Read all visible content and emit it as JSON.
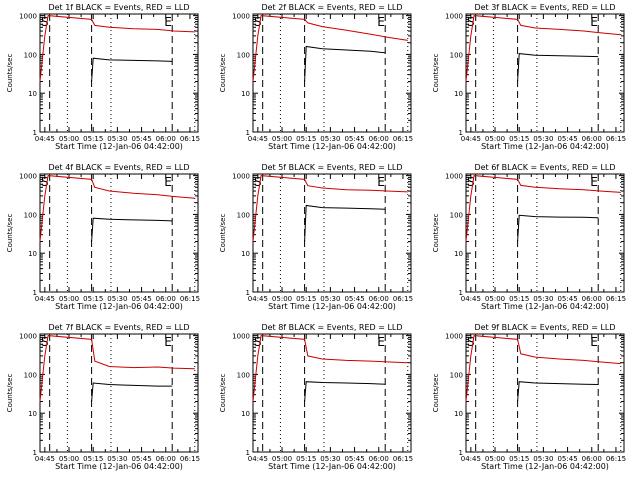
{
  "figure": {
    "panels": [
      {
        "title": "Det 1f BLACK = Events, RED = LLD"
      },
      {
        "title": "Det 2f BLACK = Events, RED = LLD"
      },
      {
        "title": "Det 3f BLACK = Events, RED = LLD"
      },
      {
        "title": "Det 4f BLACK = Events, RED = LLD"
      },
      {
        "title": "Det 5f BLACK = Events, RED = LLD"
      },
      {
        "title": "Det 6f BLACK = Events, RED = LLD"
      },
      {
        "title": "Det 7f BLACK = Events, RED = LLD"
      },
      {
        "title": "Det 8f BLACK = Events, RED = LLD"
      },
      {
        "title": "Det 9f BLACK = Events, RED = LLD"
      }
    ],
    "ylabel": "Counts/sec",
    "xlabel": "Start Time (12-Jan-06 04:42:00)",
    "x_ticks": [
      "04:45",
      "05:00",
      "05:15",
      "05:30",
      "05:45",
      "06:00",
      "06:15"
    ],
    "y_ticks": [
      "1",
      "10",
      "100",
      "1000"
    ],
    "marks": {
      "start": "S",
      "end": "E"
    },
    "colors": {
      "events": "#000000",
      "lld": "#cc0000",
      "axes": "#000000"
    }
  },
  "chart_data": {
    "type": "line",
    "layout": "3x3 grid of identical line charts",
    "x_range": [
      "04:42",
      "06:20"
    ],
    "y_scale": "log",
    "ylim": [
      1,
      1100
    ],
    "vertical_markers": {
      "dashed": [
        "04:48",
        "05:14",
        "06:04"
      ],
      "dotted": [
        "04:59",
        "05:26",
        "06:18"
      ]
    },
    "panels": [
      {
        "title": "Det 1f BLACK = Events, RED = LLD",
        "series": [
          {
            "name": "LLD",
            "x": [
              "04:42",
              "04:45",
              "04:47",
              "05:14",
              "05:16",
              "05:25",
              "05:40",
              "05:55",
              "06:05",
              "06:18"
            ],
            "y": [
              20,
              300,
              1000,
              800,
              560,
              500,
              460,
              440,
              400,
              380
            ]
          },
          {
            "name": "Events",
            "x": [
              "05:14",
              "05:15",
              "05:25",
              "05:40",
              "05:55",
              "06:04"
            ],
            "y": [
              20,
              80,
              72,
              70,
              68,
              66
            ]
          }
        ]
      },
      {
        "title": "Det 2f BLACK = Events, RED = LLD",
        "series": [
          {
            "name": "LLD",
            "x": [
              "04:42",
              "04:45",
              "04:47",
              "05:14",
              "05:16",
              "05:25",
              "05:40",
              "05:55",
              "06:05",
              "06:18"
            ],
            "y": [
              20,
              300,
              1000,
              800,
              650,
              520,
              420,
              330,
              280,
              230
            ]
          },
          {
            "name": "Events",
            "x": [
              "05:14",
              "05:15",
              "05:25",
              "05:40",
              "05:55",
              "06:04"
            ],
            "y": [
              20,
              160,
              140,
              130,
              120,
              110
            ]
          }
        ]
      },
      {
        "title": "Det 3f BLACK = Events, RED = LLD",
        "series": [
          {
            "name": "LLD",
            "x": [
              "04:42",
              "04:45",
              "04:47",
              "05:14",
              "05:16",
              "05:25",
              "05:40",
              "05:55",
              "06:05",
              "06:18"
            ],
            "y": [
              20,
              300,
              1000,
              800,
              560,
              480,
              440,
              400,
              360,
              320
            ]
          },
          {
            "name": "Events",
            "x": [
              "05:14",
              "05:15",
              "05:25",
              "05:40",
              "05:55",
              "06:04"
            ],
            "y": [
              20,
              105,
              95,
              92,
              90,
              88
            ]
          }
        ]
      },
      {
        "title": "Det 4f BLACK = Events, RED = LLD",
        "series": [
          {
            "name": "LLD",
            "x": [
              "04:42",
              "04:45",
              "04:47",
              "05:14",
              "05:16",
              "05:25",
              "05:40",
              "05:55",
              "06:05",
              "06:18"
            ],
            "y": [
              20,
              300,
              1000,
              800,
              500,
              400,
              350,
              320,
              290,
              260
            ]
          },
          {
            "name": "Events",
            "x": [
              "05:14",
              "05:15",
              "05:25",
              "05:40",
              "05:55",
              "06:04"
            ],
            "y": [
              20,
              80,
              75,
              72,
              70,
              68
            ]
          }
        ]
      },
      {
        "title": "Det 5f BLACK = Events, RED = LLD",
        "series": [
          {
            "name": "LLD",
            "x": [
              "04:42",
              "04:45",
              "04:47",
              "05:14",
              "05:16",
              "05:25",
              "05:40",
              "05:55",
              "06:05",
              "06:18"
            ],
            "y": [
              20,
              300,
              1000,
              800,
              550,
              480,
              430,
              420,
              400,
              380
            ]
          },
          {
            "name": "Events",
            "x": [
              "05:14",
              "05:15",
              "05:25",
              "05:40",
              "05:55",
              "06:04"
            ],
            "y": [
              20,
              170,
              150,
              145,
              140,
              135
            ]
          }
        ]
      },
      {
        "title": "Det 6f BLACK = Events, RED = LLD",
        "series": [
          {
            "name": "LLD",
            "x": [
              "04:42",
              "04:45",
              "04:47",
              "05:14",
              "05:16",
              "05:25",
              "05:40",
              "05:55",
              "06:05",
              "06:18"
            ],
            "y": [
              20,
              300,
              1000,
              800,
              560,
              500,
              460,
              430,
              400,
              370
            ]
          },
          {
            "name": "Events",
            "x": [
              "05:14",
              "05:15",
              "05:25",
              "05:40",
              "05:55",
              "06:04"
            ],
            "y": [
              20,
              95,
              88,
              85,
              84,
              82
            ]
          }
        ]
      },
      {
        "title": "Det 7f BLACK = Events, RED = LLD",
        "series": [
          {
            "name": "LLD",
            "x": [
              "04:42",
              "04:45",
              "04:47",
              "05:14",
              "05:16",
              "05:25",
              "05:40",
              "05:55",
              "06:05",
              "06:18"
            ],
            "y": [
              20,
              300,
              1000,
              800,
              220,
              160,
              150,
              155,
              145,
              140
            ]
          },
          {
            "name": "Events",
            "x": [
              "05:14",
              "05:15",
              "05:25",
              "05:40",
              "05:55",
              "06:04"
            ],
            "y": [
              20,
              60,
              55,
              52,
              50,
              50
            ]
          }
        ]
      },
      {
        "title": "Det 8f BLACK = Events, RED = LLD",
        "series": [
          {
            "name": "LLD",
            "x": [
              "04:42",
              "04:45",
              "04:47",
              "05:14",
              "05:16",
              "05:25",
              "05:40",
              "05:55",
              "06:05",
              "06:18"
            ],
            "y": [
              20,
              300,
              1000,
              800,
              300,
              250,
              230,
              220,
              210,
              200
            ]
          },
          {
            "name": "Events",
            "x": [
              "05:14",
              "05:15",
              "05:25",
              "05:40",
              "05:55",
              "06:04"
            ],
            "y": [
              20,
              65,
              62,
              60,
              58,
              56
            ]
          }
        ]
      },
      {
        "title": "Det 9f BLACK = Events, RED = LLD",
        "series": [
          {
            "name": "LLD",
            "x": [
              "04:42",
              "04:45",
              "04:47",
              "05:14",
              "05:16",
              "05:25",
              "05:40",
              "05:55",
              "06:05",
              "06:18"
            ],
            "y": [
              20,
              300,
              1000,
              800,
              340,
              280,
              250,
              230,
              210,
              190
            ]
          },
          {
            "name": "Events",
            "x": [
              "05:14",
              "05:15",
              "05:25",
              "05:40",
              "05:55",
              "06:04"
            ],
            "y": [
              20,
              65,
              60,
              58,
              56,
              55
            ]
          }
        ]
      }
    ]
  }
}
